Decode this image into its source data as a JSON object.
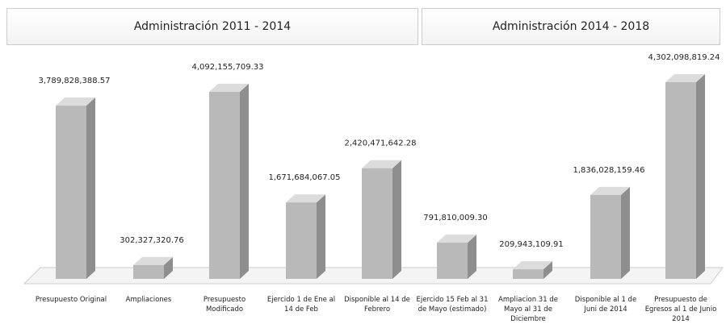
{
  "chart_data": {
    "type": "bar3d",
    "headers": [
      "Administración 2011 - 2014",
      "Administración 2014 - 2018"
    ],
    "categories": [
      "Presupuesto Original",
      "Ampliaciones",
      "Presupuesto Modificado",
      "Ejercido 1 de Ene al 14 de Feb",
      "Disponible al 14 de Febrero",
      "Ejercido 15 Feb al 31 de Mayo (estimado)",
      "Ampliacion 31 de Mayo al 31 de Diciembre",
      "Disponible al 1 de Juni de 2014",
      "Presupuesto de Egresos al 1 de Junio 2014"
    ],
    "values": [
      3789828388.57,
      302327320.76,
      4092155709.33,
      1671684067.05,
      2420471642.28,
      791810009.3,
      209943109.91,
      1836028159.46,
      4302098819.24
    ],
    "value_labels": [
      "3,789,828,388.57",
      "302,327,320.76",
      "4,092,155,709.33",
      "1,671,684,067.05",
      "2,420,471,642.28",
      "791,810,009.30",
      "209,943,109.91",
      "1,836,028,159.46",
      "4,302,098,819.24"
    ],
    "color": "#b9b9b9"
  }
}
